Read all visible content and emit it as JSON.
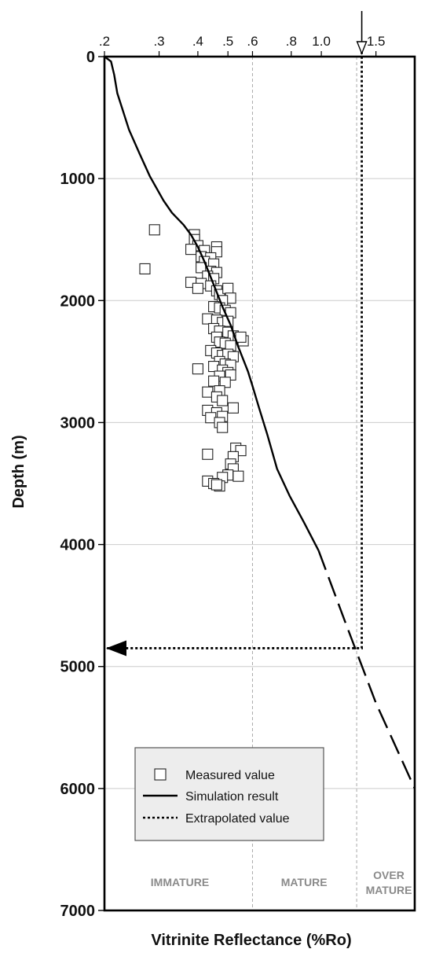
{
  "chart_data": {
    "type": "scatter",
    "title": "",
    "xlabel": "Vitrinite Reflectance (%Ro)",
    "ylabel": "Depth (m)",
    "x_scale": "log",
    "xlim": [
      0.2,
      2.0
    ],
    "ylim": [
      0,
      7000
    ],
    "y_inverted": true,
    "grid": true,
    "legend_position": "lower-center",
    "x_tick_labels": [
      ".2",
      ".3",
      ".4",
      ".5",
      ".6",
      ".8",
      "1.0",
      "1.5"
    ],
    "x_ticks": [
      0.2,
      0.3,
      0.4,
      0.5,
      0.6,
      0.8,
      1.0,
      1.5
    ],
    "y_ticks": [
      0,
      1000,
      2000,
      3000,
      4000,
      5000,
      6000,
      7000
    ],
    "y_tick_labels": [
      "0",
      "1000",
      "2000",
      "3000",
      "4000",
      "5000",
      "6000",
      "7000"
    ],
    "zone_boundaries": [
      0.6,
      1.3
    ],
    "zones": [
      {
        "label": "IMMATURE",
        "x_center": 0.35
      },
      {
        "label": "MATURE",
        "x_center": 0.88
      },
      {
        "label": "OVER",
        "label2": "MATURE",
        "x_center": 1.65
      }
    ],
    "series": [
      {
        "name": "Measured value",
        "kind": "scatter",
        "marker": "open-square",
        "points": [
          [
            0.29,
            1420
          ],
          [
            0.27,
            1740
          ],
          [
            0.39,
            1460
          ],
          [
            0.39,
            1500
          ],
          [
            0.4,
            1550
          ],
          [
            0.38,
            1580
          ],
          [
            0.42,
            1590
          ],
          [
            0.46,
            1560
          ],
          [
            0.46,
            1600
          ],
          [
            0.41,
            1640
          ],
          [
            0.44,
            1650
          ],
          [
            0.42,
            1680
          ],
          [
            0.45,
            1700
          ],
          [
            0.41,
            1730
          ],
          [
            0.44,
            1760
          ],
          [
            0.46,
            1770
          ],
          [
            0.43,
            1800
          ],
          [
            0.45,
            1820
          ],
          [
            0.38,
            1850
          ],
          [
            0.41,
            1860
          ],
          [
            0.4,
            1900
          ],
          [
            0.44,
            1880
          ],
          [
            0.46,
            1920
          ],
          [
            0.47,
            1950
          ],
          [
            0.5,
            1900
          ],
          [
            0.51,
            1980
          ],
          [
            0.48,
            2000
          ],
          [
            0.45,
            2050
          ],
          [
            0.47,
            2060
          ],
          [
            0.49,
            2080
          ],
          [
            0.51,
            2100
          ],
          [
            0.43,
            2150
          ],
          [
            0.46,
            2160
          ],
          [
            0.48,
            2180
          ],
          [
            0.5,
            2170
          ],
          [
            0.45,
            2230
          ],
          [
            0.47,
            2250
          ],
          [
            0.5,
            2260
          ],
          [
            0.52,
            2290
          ],
          [
            0.54,
            2310
          ],
          [
            0.56,
            2330
          ],
          [
            0.55,
            2300
          ],
          [
            0.46,
            2300
          ],
          [
            0.47,
            2340
          ],
          [
            0.49,
            2350
          ],
          [
            0.51,
            2370
          ],
          [
            0.44,
            2410
          ],
          [
            0.46,
            2430
          ],
          [
            0.48,
            2450
          ],
          [
            0.5,
            2440
          ],
          [
            0.52,
            2460
          ],
          [
            0.47,
            2500
          ],
          [
            0.49,
            2520
          ],
          [
            0.51,
            2530
          ],
          [
            0.45,
            2540
          ],
          [
            0.4,
            2560
          ],
          [
            0.48,
            2570
          ],
          [
            0.5,
            2590
          ],
          [
            0.51,
            2610
          ],
          [
            0.47,
            2620
          ],
          [
            0.45,
            2660
          ],
          [
            0.49,
            2670
          ],
          [
            0.47,
            2740
          ],
          [
            0.43,
            2750
          ],
          [
            0.46,
            2790
          ],
          [
            0.48,
            2820
          ],
          [
            0.52,
            2880
          ],
          [
            0.43,
            2900
          ],
          [
            0.46,
            2920
          ],
          [
            0.48,
            2950
          ],
          [
            0.44,
            2960
          ],
          [
            0.47,
            3000
          ],
          [
            0.48,
            3040
          ],
          [
            0.53,
            3210
          ],
          [
            0.55,
            3230
          ],
          [
            0.43,
            3260
          ],
          [
            0.52,
            3280
          ],
          [
            0.51,
            3340
          ],
          [
            0.52,
            3380
          ],
          [
            0.5,
            3430
          ],
          [
            0.54,
            3440
          ],
          [
            0.48,
            3450
          ],
          [
            0.43,
            3480
          ],
          [
            0.45,
            3500
          ],
          [
            0.47,
            3520
          ],
          [
            0.46,
            3510
          ]
        ]
      },
      {
        "name": "Simulation result",
        "kind": "line",
        "style": "solid",
        "points": [
          [
            0.2,
            0
          ],
          [
            0.21,
            40
          ],
          [
            0.215,
            150
          ],
          [
            0.22,
            300
          ],
          [
            0.24,
            600
          ],
          [
            0.26,
            800
          ],
          [
            0.28,
            980
          ],
          [
            0.31,
            1180
          ],
          [
            0.33,
            1280
          ],
          [
            0.36,
            1380
          ],
          [
            0.38,
            1460
          ],
          [
            0.4,
            1560
          ],
          [
            0.42,
            1680
          ],
          [
            0.45,
            1870
          ],
          [
            0.48,
            2050
          ],
          [
            0.51,
            2200
          ],
          [
            0.54,
            2380
          ],
          [
            0.58,
            2580
          ],
          [
            0.6,
            2700
          ],
          [
            0.63,
            2880
          ],
          [
            0.67,
            3100
          ],
          [
            0.72,
            3380
          ],
          [
            0.79,
            3600
          ],
          [
            0.88,
            3820
          ],
          [
            0.98,
            4050
          ]
        ]
      },
      {
        "name": "Simulation result (extrapolated)",
        "kind": "line",
        "style": "dashed",
        "points": [
          [
            0.98,
            4050
          ],
          [
            1.2,
            4650
          ],
          [
            1.5,
            5300
          ],
          [
            2.0,
            6000
          ]
        ]
      },
      {
        "name": "Extrapolated value",
        "kind": "line",
        "style": "dotted",
        "points": [
          [
            1.35,
            -40
          ],
          [
            1.35,
            4850
          ],
          [
            0.2,
            4850
          ]
        ]
      }
    ],
    "annotations": [
      {
        "kind": "arrow-down",
        "x": 1.35,
        "label": ""
      },
      {
        "kind": "arrow-left",
        "y": 4850,
        "label": ""
      }
    ],
    "legend": [
      "Measured value",
      "Simulation result",
      "Extrapolated value"
    ]
  }
}
